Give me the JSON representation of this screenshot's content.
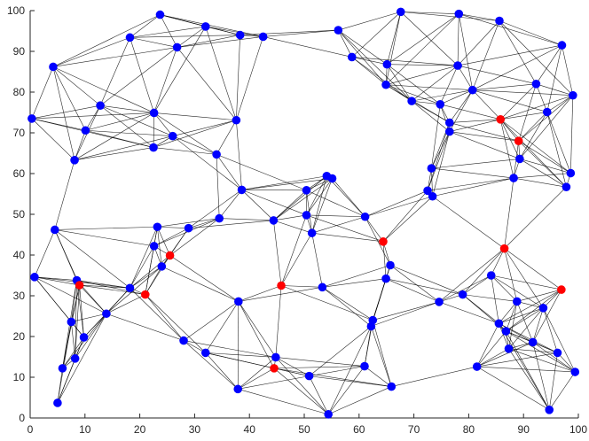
{
  "chart_data": {
    "type": "scatter",
    "title": "",
    "xlabel": "",
    "ylabel": "",
    "xlim": [
      0,
      100
    ],
    "ylim": [
      0,
      100
    ],
    "x_ticks": [
      0,
      10,
      20,
      30,
      40,
      50,
      60,
      70,
      80,
      90,
      100
    ],
    "y_ticks": [
      0,
      10,
      20,
      30,
      40,
      50,
      60,
      70,
      80,
      90,
      100
    ],
    "x_tick_labels": [
      "0",
      "10",
      "20",
      "30",
      "40",
      "50",
      "60",
      "70",
      "80",
      "90",
      "100"
    ],
    "y_tick_labels": [
      "0",
      "10",
      "20",
      "30",
      "40",
      "50",
      "60",
      "70",
      "80",
      "90",
      "100"
    ],
    "grid": false,
    "colors": {
      "blue_node": "#0000ff",
      "red_node": "#ff0000",
      "edge": "#000000",
      "axis": "#262626"
    },
    "nodes": [
      {
        "x": 23.7,
        "y": 99.0,
        "color": "blue"
      },
      {
        "x": 18.2,
        "y": 93.4,
        "color": "blue"
      },
      {
        "x": 32.0,
        "y": 96.1,
        "color": "blue"
      },
      {
        "x": 26.8,
        "y": 91.0,
        "color": "blue"
      },
      {
        "x": 38.3,
        "y": 94.0,
        "color": "blue"
      },
      {
        "x": 42.5,
        "y": 93.6,
        "color": "blue"
      },
      {
        "x": 56.2,
        "y": 95.2,
        "color": "blue"
      },
      {
        "x": 67.6,
        "y": 99.7,
        "color": "blue"
      },
      {
        "x": 78.2,
        "y": 99.2,
        "color": "blue"
      },
      {
        "x": 85.6,
        "y": 97.5,
        "color": "blue"
      },
      {
        "x": 97.0,
        "y": 91.5,
        "color": "blue"
      },
      {
        "x": 4.2,
        "y": 86.2,
        "color": "blue"
      },
      {
        "x": 58.7,
        "y": 88.6,
        "color": "blue"
      },
      {
        "x": 65.1,
        "y": 86.8,
        "color": "blue"
      },
      {
        "x": 78.0,
        "y": 86.5,
        "color": "blue"
      },
      {
        "x": 64.9,
        "y": 81.8,
        "color": "blue"
      },
      {
        "x": 80.7,
        "y": 80.5,
        "color": "blue"
      },
      {
        "x": 92.3,
        "y": 82.0,
        "color": "blue"
      },
      {
        "x": 99.0,
        "y": 79.2,
        "color": "blue"
      },
      {
        "x": 69.6,
        "y": 77.8,
        "color": "blue"
      },
      {
        "x": 74.8,
        "y": 77.0,
        "color": "blue"
      },
      {
        "x": 12.8,
        "y": 76.7,
        "color": "blue"
      },
      {
        "x": 22.6,
        "y": 74.9,
        "color": "blue"
      },
      {
        "x": 0.3,
        "y": 73.5,
        "color": "blue"
      },
      {
        "x": 37.6,
        "y": 73.1,
        "color": "blue"
      },
      {
        "x": 85.8,
        "y": 73.3,
        "color": "red"
      },
      {
        "x": 94.3,
        "y": 75.1,
        "color": "blue"
      },
      {
        "x": 76.5,
        "y": 72.5,
        "color": "blue"
      },
      {
        "x": 10.1,
        "y": 70.6,
        "color": "blue"
      },
      {
        "x": 76.5,
        "y": 70.3,
        "color": "blue"
      },
      {
        "x": 26.0,
        "y": 69.2,
        "color": "blue"
      },
      {
        "x": 89.1,
        "y": 68.0,
        "color": "red"
      },
      {
        "x": 22.5,
        "y": 66.4,
        "color": "blue"
      },
      {
        "x": 8.1,
        "y": 63.3,
        "color": "blue"
      },
      {
        "x": 34.0,
        "y": 64.7,
        "color": "blue"
      },
      {
        "x": 89.3,
        "y": 63.6,
        "color": "blue"
      },
      {
        "x": 73.2,
        "y": 61.3,
        "color": "blue"
      },
      {
        "x": 98.6,
        "y": 60.1,
        "color": "blue"
      },
      {
        "x": 54.1,
        "y": 59.4,
        "color": "blue"
      },
      {
        "x": 55.1,
        "y": 58.8,
        "color": "blue"
      },
      {
        "x": 88.2,
        "y": 58.9,
        "color": "blue"
      },
      {
        "x": 97.8,
        "y": 56.7,
        "color": "blue"
      },
      {
        "x": 38.6,
        "y": 56.0,
        "color": "blue"
      },
      {
        "x": 50.4,
        "y": 55.9,
        "color": "blue"
      },
      {
        "x": 72.5,
        "y": 55.8,
        "color": "blue"
      },
      {
        "x": 73.4,
        "y": 54.4,
        "color": "blue"
      },
      {
        "x": 23.2,
        "y": 46.9,
        "color": "blue"
      },
      {
        "x": 34.5,
        "y": 49.0,
        "color": "blue"
      },
      {
        "x": 44.4,
        "y": 48.5,
        "color": "blue"
      },
      {
        "x": 50.4,
        "y": 49.8,
        "color": "blue"
      },
      {
        "x": 61.1,
        "y": 49.4,
        "color": "blue"
      },
      {
        "x": 4.5,
        "y": 46.2,
        "color": "blue"
      },
      {
        "x": 28.9,
        "y": 46.6,
        "color": "blue"
      },
      {
        "x": 51.4,
        "y": 45.4,
        "color": "blue"
      },
      {
        "x": 64.4,
        "y": 43.3,
        "color": "red"
      },
      {
        "x": 22.6,
        "y": 42.2,
        "color": "blue"
      },
      {
        "x": 86.5,
        "y": 41.6,
        "color": "red"
      },
      {
        "x": 25.5,
        "y": 39.9,
        "color": "red"
      },
      {
        "x": 24.0,
        "y": 37.2,
        "color": "blue"
      },
      {
        "x": 65.7,
        "y": 37.5,
        "color": "blue"
      },
      {
        "x": 0.8,
        "y": 34.6,
        "color": "blue"
      },
      {
        "x": 8.5,
        "y": 33.8,
        "color": "blue"
      },
      {
        "x": 9.0,
        "y": 32.6,
        "color": "red"
      },
      {
        "x": 18.2,
        "y": 31.9,
        "color": "blue"
      },
      {
        "x": 21.0,
        "y": 30.3,
        "color": "red"
      },
      {
        "x": 45.8,
        "y": 32.5,
        "color": "red"
      },
      {
        "x": 53.3,
        "y": 32.1,
        "color": "blue"
      },
      {
        "x": 64.9,
        "y": 34.2,
        "color": "blue"
      },
      {
        "x": 84.1,
        "y": 35.0,
        "color": "blue"
      },
      {
        "x": 96.9,
        "y": 31.5,
        "color": "red"
      },
      {
        "x": 78.9,
        "y": 30.3,
        "color": "blue"
      },
      {
        "x": 74.6,
        "y": 28.5,
        "color": "blue"
      },
      {
        "x": 38.0,
        "y": 28.6,
        "color": "blue"
      },
      {
        "x": 88.8,
        "y": 28.6,
        "color": "blue"
      },
      {
        "x": 93.6,
        "y": 27.0,
        "color": "blue"
      },
      {
        "x": 13.9,
        "y": 25.6,
        "color": "blue"
      },
      {
        "x": 7.5,
        "y": 23.6,
        "color": "blue"
      },
      {
        "x": 62.5,
        "y": 24.0,
        "color": "blue"
      },
      {
        "x": 62.2,
        "y": 22.5,
        "color": "blue"
      },
      {
        "x": 85.5,
        "y": 23.2,
        "color": "blue"
      },
      {
        "x": 86.8,
        "y": 21.3,
        "color": "blue"
      },
      {
        "x": 9.8,
        "y": 19.8,
        "color": "blue"
      },
      {
        "x": 28.0,
        "y": 19.0,
        "color": "blue"
      },
      {
        "x": 91.7,
        "y": 18.6,
        "color": "blue"
      },
      {
        "x": 87.3,
        "y": 17.0,
        "color": "blue"
      },
      {
        "x": 32.0,
        "y": 16.0,
        "color": "blue"
      },
      {
        "x": 44.8,
        "y": 14.9,
        "color": "blue"
      },
      {
        "x": 8.2,
        "y": 14.6,
        "color": "blue"
      },
      {
        "x": 96.2,
        "y": 16.0,
        "color": "blue"
      },
      {
        "x": 44.5,
        "y": 12.2,
        "color": "red"
      },
      {
        "x": 81.5,
        "y": 12.6,
        "color": "blue"
      },
      {
        "x": 61.0,
        "y": 12.7,
        "color": "blue"
      },
      {
        "x": 5.9,
        "y": 12.2,
        "color": "blue"
      },
      {
        "x": 99.4,
        "y": 11.3,
        "color": "blue"
      },
      {
        "x": 50.9,
        "y": 10.3,
        "color": "blue"
      },
      {
        "x": 65.9,
        "y": 7.7,
        "color": "blue"
      },
      {
        "x": 37.9,
        "y": 7.1,
        "color": "blue"
      },
      {
        "x": 5.0,
        "y": 3.7,
        "color": "blue"
      },
      {
        "x": 94.7,
        "y": 2.0,
        "color": "blue"
      },
      {
        "x": 54.4,
        "y": 0.9,
        "color": "blue"
      }
    ]
  }
}
